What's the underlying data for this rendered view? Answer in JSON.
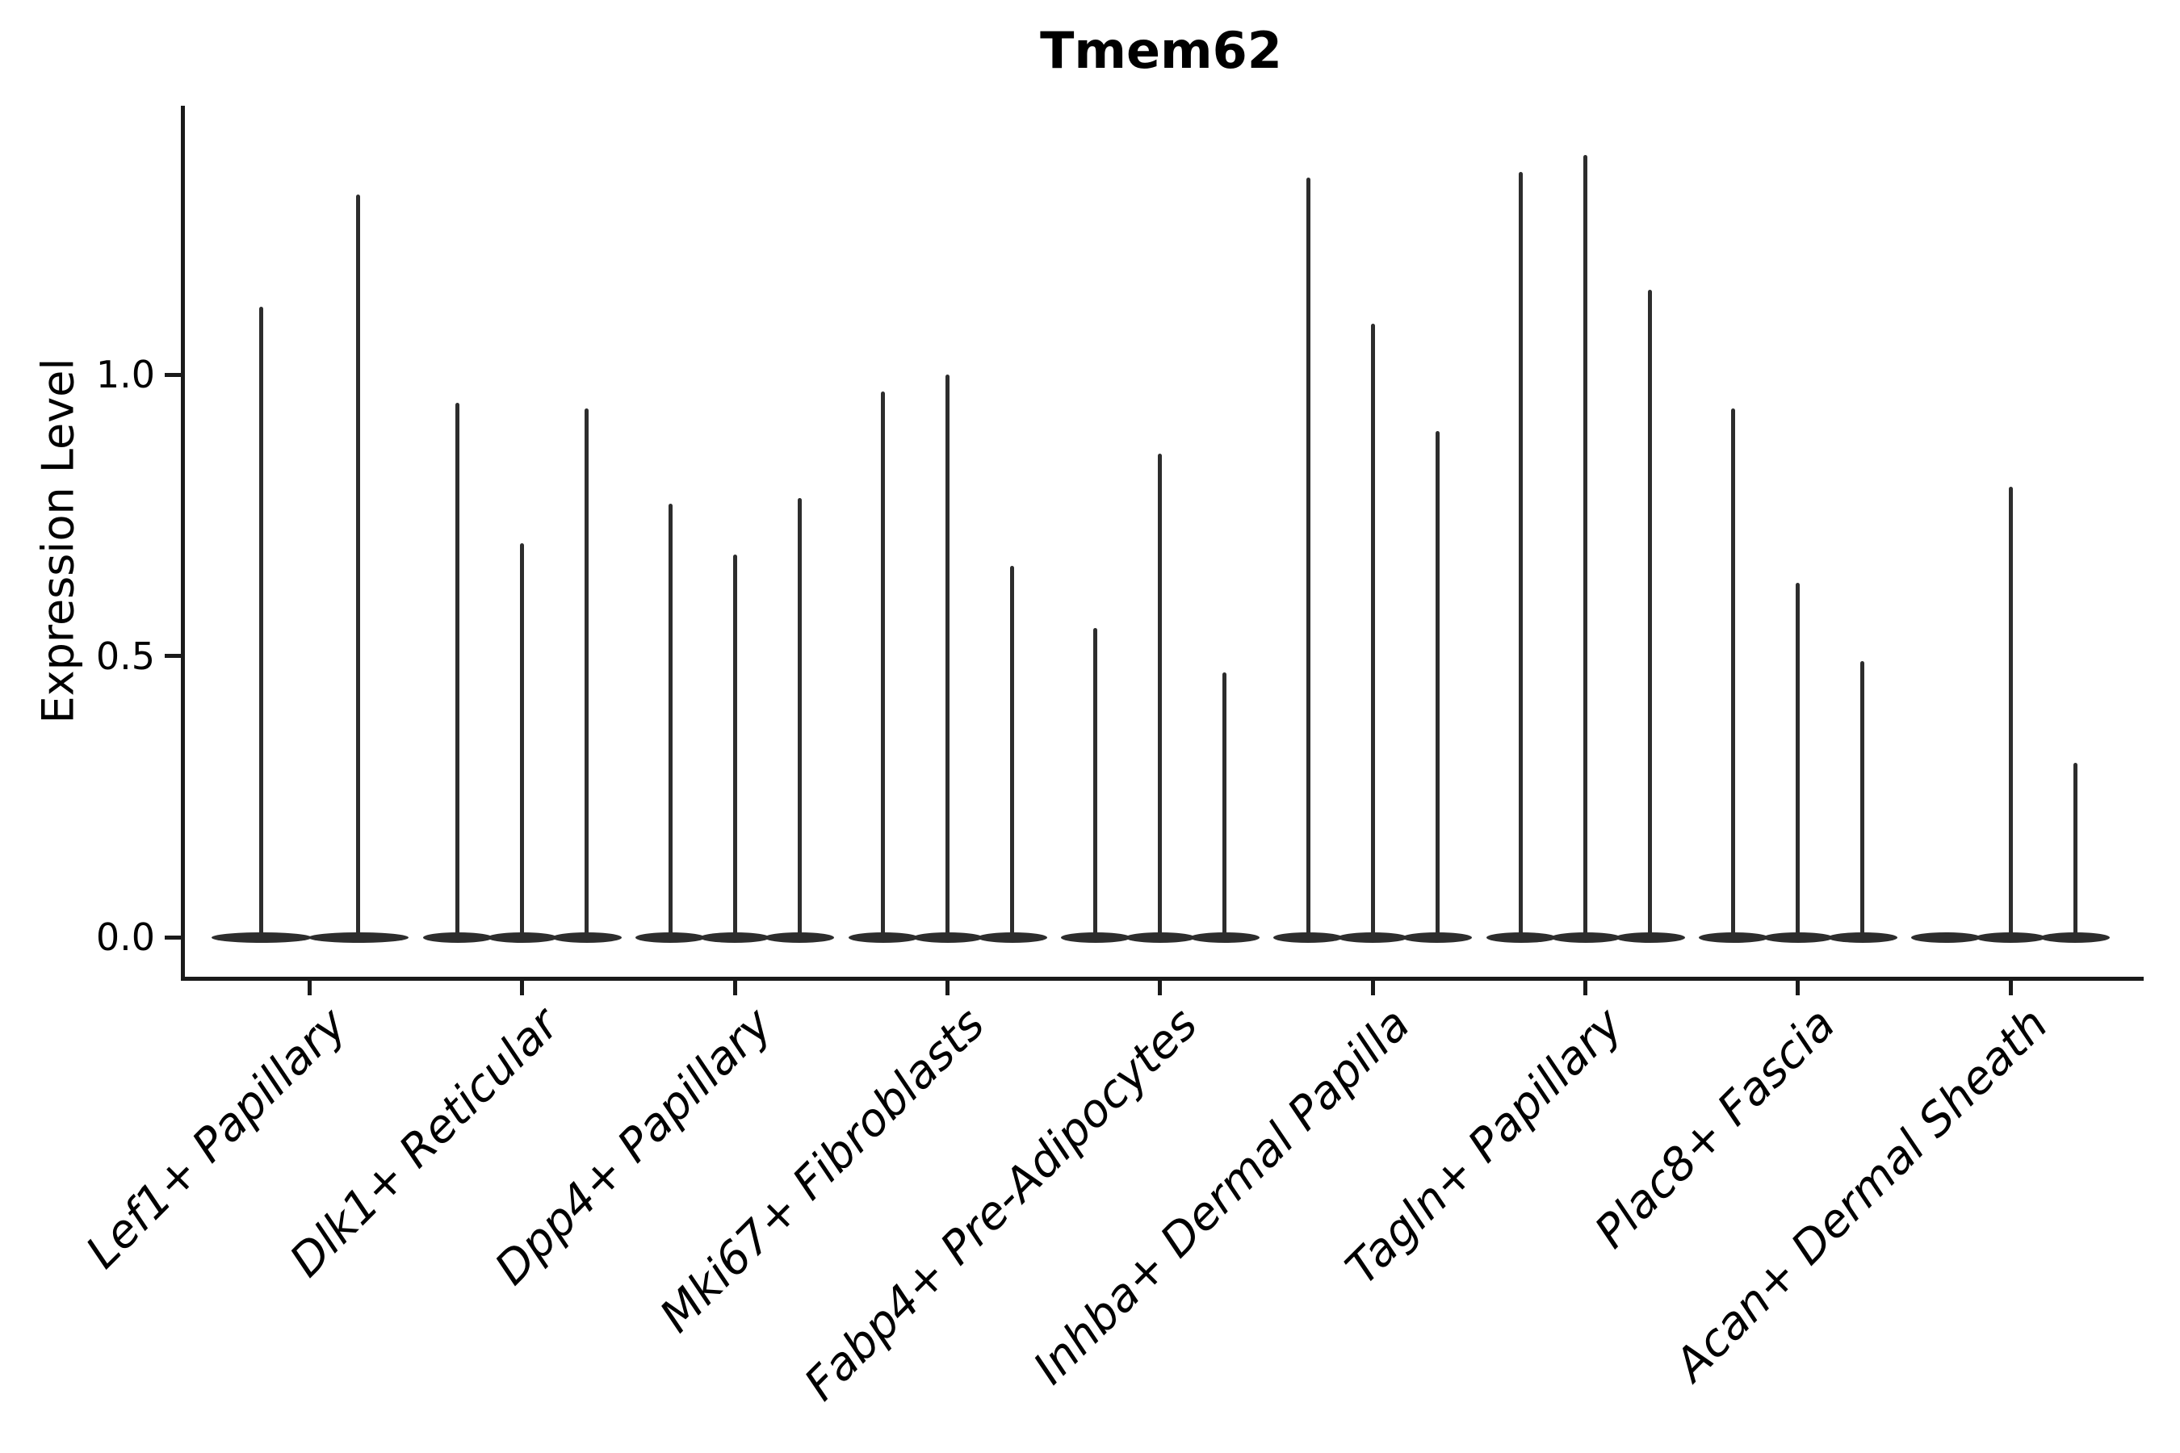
{
  "chart_data": {
    "type": "violin",
    "title": "Tmem62",
    "ylabel": "Expression Level",
    "xlabel": "",
    "yticks": [
      {
        "label": "0.0",
        "value": 0.0
      },
      {
        "label": "0.5",
        "value": 0.5
      },
      {
        "label": "1.0",
        "value": 1.0
      }
    ],
    "ylim": [
      -0.07,
      1.48
    ],
    "grid": false,
    "legend": "none",
    "categories": [
      "Lef1+ Papillary",
      "Dlk1+ Reticular",
      "Dpp4+ Papillary",
      "Mki67+ Fibroblasts",
      "Fabp4+ Pre-Adipocytes",
      "Inhba+ Dermal Papilla",
      "Tagln+ Papillary",
      "Plac8+ Fascia",
      "Acan+ Dermal Sheath"
    ],
    "series": [
      {
        "category": "Lef1+ Papillary",
        "violin_max_values": [
          1.12,
          1.32
        ]
      },
      {
        "category": "Dlk1+ Reticular",
        "violin_max_values": [
          0.95,
          0.7,
          0.94
        ]
      },
      {
        "category": "Dpp4+ Papillary",
        "violin_max_values": [
          0.77,
          0.68,
          0.78
        ]
      },
      {
        "category": "Mki67+ Fibroblasts",
        "violin_max_values": [
          0.97,
          1.0,
          0.66
        ]
      },
      {
        "category": "Fabp4+ Pre-Adipocytes",
        "violin_max_values": [
          0.55,
          0.86,
          0.47
        ]
      },
      {
        "category": "Inhba+ Dermal Papilla",
        "violin_max_values": [
          1.35,
          1.09,
          0.9
        ]
      },
      {
        "category": "Tagln+ Papillary",
        "violin_max_values": [
          1.36,
          1.39,
          1.15
        ]
      },
      {
        "category": "Plac8+ Fascia",
        "violin_max_values": [
          0.94,
          0.63,
          0.49
        ]
      },
      {
        "category": "Acan+ Dermal Sheath",
        "violin_max_values": [
          0.0,
          0.8,
          0.31
        ]
      }
    ],
    "colors": {
      "violin": "#2d2d2d",
      "axis": "#1a1a1a",
      "text": "#000000",
      "background": "#ffffff"
    }
  }
}
